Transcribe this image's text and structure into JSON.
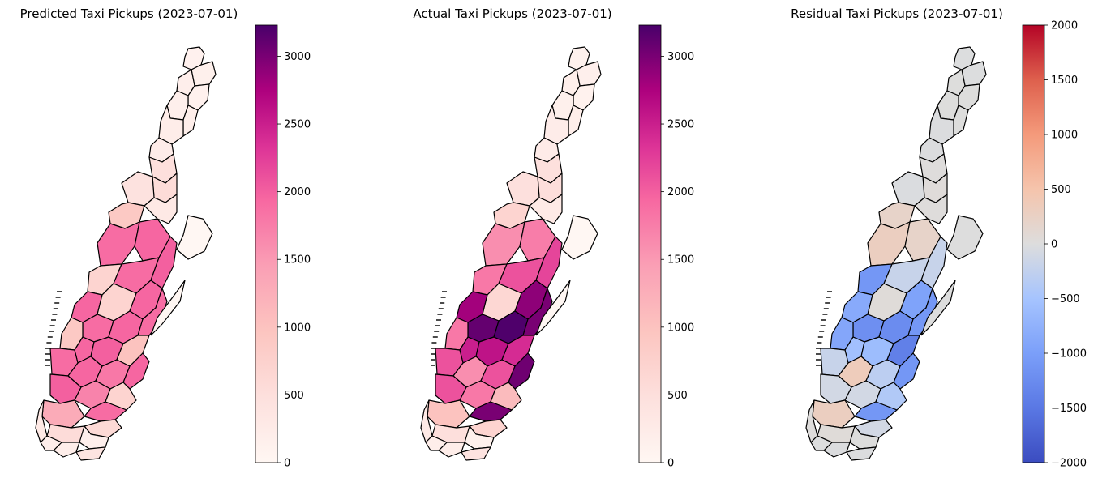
{
  "panels": [
    {
      "title": "Predicted Taxi Pickups (2023-07-01)",
      "colormap": "RdPu",
      "colorbar_range": [
        0,
        3230
      ],
      "colorbar_ticks": [
        "0",
        "500",
        "1000",
        "1500",
        "2000",
        "2500",
        "3000"
      ],
      "colorbar_tick_values": [
        0,
        500,
        1000,
        1500,
        2000,
        2500,
        3000
      ]
    },
    {
      "title": "Actual Taxi Pickups (2023-07-01)",
      "colormap": "RdPu",
      "colorbar_range": [
        0,
        3230
      ],
      "colorbar_ticks": [
        "0",
        "500",
        "1000",
        "1500",
        "2000",
        "2500",
        "3000"
      ],
      "colorbar_tick_values": [
        0,
        500,
        1000,
        1500,
        2000,
        2500,
        3000
      ]
    },
    {
      "title": "Residual Taxi Pickups (2023-07-01)",
      "colormap": "coolwarm",
      "colorbar_range": [
        -2000,
        2000
      ],
      "colorbar_ticks": [
        "−2000",
        "−1500",
        "−1000",
        "−500",
        "0",
        "500",
        "1000",
        "1500",
        "2000"
      ],
      "colorbar_tick_values": [
        -2000,
        -1500,
        -1000,
        -500,
        0,
        500,
        1000,
        1500,
        2000
      ]
    }
  ],
  "zones": {
    "note_keys": [
      "predicted",
      "actual",
      "residual"
    ],
    "values": [
      [
        120,
        130,
        -10
      ],
      [
        150,
        160,
        -10
      ],
      [
        180,
        170,
        10
      ],
      [
        120,
        110,
        10
      ],
      [
        160,
        150,
        10
      ],
      [
        200,
        190,
        10
      ],
      [
        210,
        230,
        -20
      ],
      [
        230,
        250,
        -20
      ],
      [
        500,
        480,
        20
      ],
      [
        560,
        520,
        40
      ],
      [
        450,
        480,
        -30
      ],
      [
        300,
        280,
        20
      ],
      [
        900,
        700,
        200
      ],
      [
        1900,
        1600,
        300
      ],
      [
        1950,
        1750,
        200
      ],
      [
        700,
        1800,
        -1100
      ],
      [
        1900,
        2100,
        -200
      ],
      [
        2000,
        2200,
        -200
      ],
      [
        1950,
        2800,
        -850
      ],
      [
        700,
        650,
        50
      ],
      [
        1950,
        2900,
        -950
      ],
      [
        1900,
        3100,
        -1200
      ],
      [
        1950,
        3200,
        -1250
      ],
      [
        1900,
        3000,
        -1100
      ],
      [
        900,
        1800,
        -900
      ],
      [
        1950,
        2500,
        -550
      ],
      [
        2000,
        2600,
        -600
      ],
      [
        1000,
        2400,
        -1400
      ],
      [
        1900,
        2100,
        -200
      ],
      [
        1950,
        1600,
        350
      ],
      [
        1800,
        2100,
        -300
      ],
      [
        1950,
        3050,
        -1100
      ],
      [
        2000,
        2100,
        -100
      ],
      [
        1700,
        1800,
        -100
      ],
      [
        700,
        1100,
        -400
      ],
      [
        1900,
        3000,
        -1100
      ],
      [
        1300,
        1000,
        300
      ],
      [
        600,
        700,
        -100
      ],
      [
        550,
        500,
        50
      ],
      [
        300,
        280,
        20
      ],
      [
        200,
        220,
        -20
      ],
      [
        180,
        190,
        -10
      ],
      [
        160,
        150,
        10
      ],
      [
        400,
        420,
        -20
      ]
    ]
  }
}
